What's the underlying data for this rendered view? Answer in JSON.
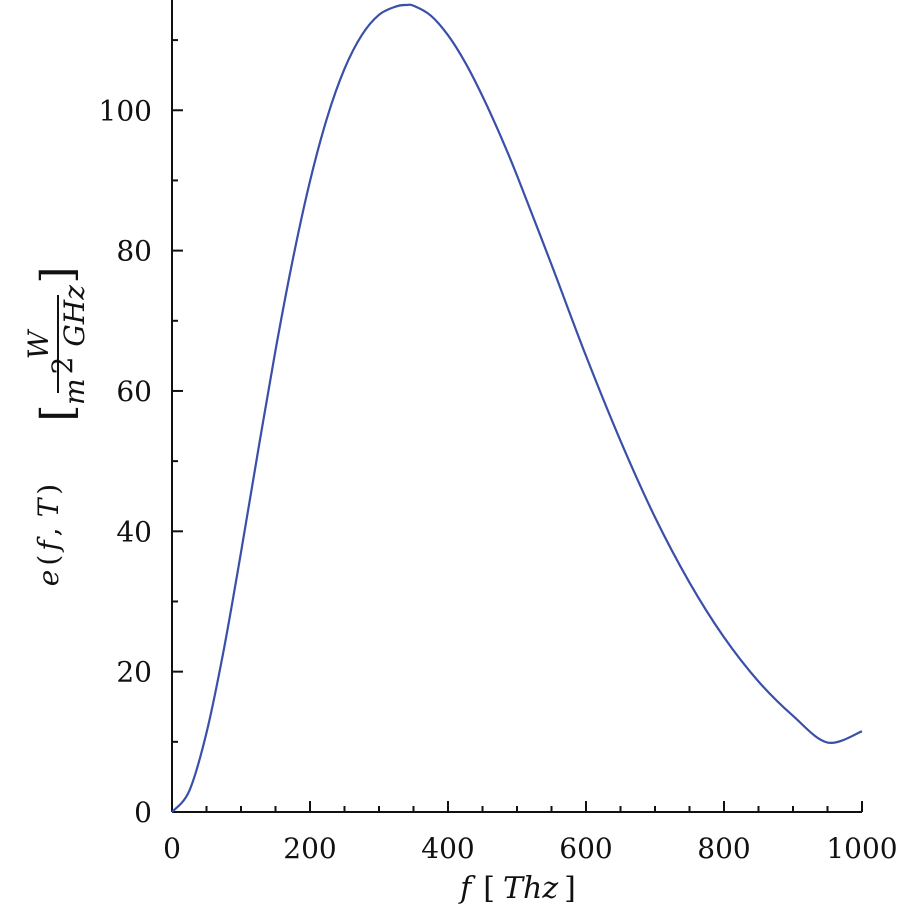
{
  "chart_data": {
    "type": "line",
    "xlim": [
      0,
      1000
    ],
    "ylim": [
      0,
      115
    ],
    "x_ticks": [
      0,
      200,
      400,
      600,
      800,
      1000
    ],
    "x_tick_labels": [
      "0",
      "200",
      "400",
      "600",
      "800",
      "1000"
    ],
    "y_ticks": [
      0,
      20,
      40,
      60,
      80,
      100
    ],
    "y_tick_labels": [
      "0",
      "20",
      "40",
      "60",
      "80",
      "100"
    ],
    "x_minor_step": 50,
    "y_minor_step": 10,
    "grid": false,
    "line_color": "#3a4fa8",
    "xlabel": {
      "variable": "f",
      "unit_open": "[",
      "unit": "Thz",
      "unit_close": "]"
    },
    "ylabel": {
      "function": "e",
      "args_open": "(",
      "arg1": "f",
      "comma": ",",
      "arg2": "T",
      "args_close": ")",
      "bracket_open": "[",
      "numerator": "W",
      "denominator_base": "m",
      "denominator_exp": "2",
      "denominator_rest": "GHz",
      "bracket_close": "]"
    },
    "series": [
      {
        "x": [
          0,
          25,
          50,
          75,
          100,
          125,
          150,
          175,
          200,
          225,
          250,
          275,
          300,
          325,
          340,
          350,
          375,
          400,
          425,
          450,
          475,
          500,
          550,
          600,
          650,
          700,
          750,
          800,
          850,
          900,
          950,
          1000
        ],
        "y": [
          0,
          3.0,
          11.3,
          23.1,
          37.0,
          51.6,
          65.8,
          78.7,
          89.9,
          99.0,
          105.9,
          110.7,
          113.6,
          114.8,
          115.0,
          114.9,
          113.5,
          110.7,
          106.8,
          102.0,
          96.6,
          90.7,
          78.0,
          65.0,
          52.9,
          42.0,
          32.7,
          24.9,
          18.6,
          13.7,
          9.9,
          11.5
        ]
      }
    ]
  }
}
